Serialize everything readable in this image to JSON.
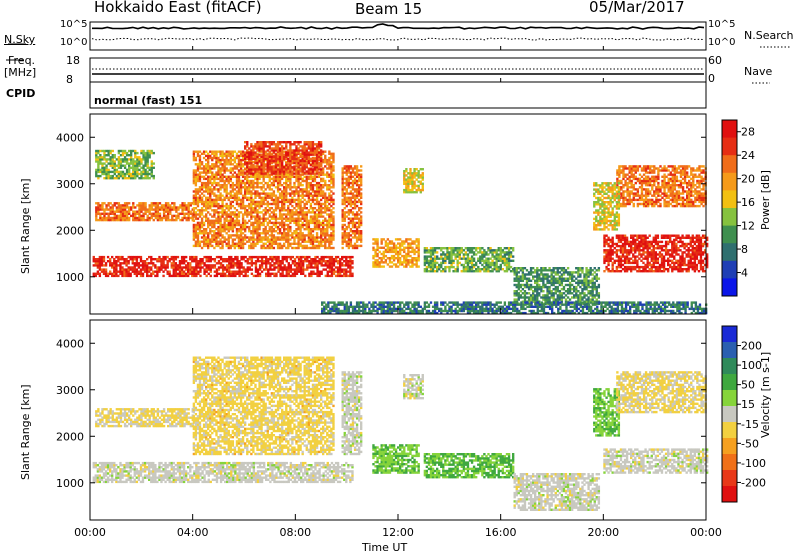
{
  "header": {
    "title": "Hokkaido East (fitACF)",
    "beam": "Beam 15",
    "date": "05/Mar/2017"
  },
  "top_panels": {
    "nsky_label": "N.Sky",
    "nsearch_label": "N.Search",
    "noise_ticks": [
      "10^5",
      "10^0"
    ],
    "freq_label_1": "Freq.",
    "freq_label_2": "[MHz]",
    "freq_ticks": [
      "18",
      "8"
    ],
    "nave_label": "Nave",
    "nave_ticks": [
      "60",
      "0"
    ],
    "cpid_label": "CPID",
    "cpid_value": "normal (fast) 151"
  },
  "chart_data": [
    {
      "type": "heatmap",
      "title": "",
      "ylabel": "Slant Range [km]",
      "xlabel": "Time UT",
      "x_ticks": [
        "00:00",
        "04:00",
        "08:00",
        "12:00",
        "16:00",
        "20:00",
        "00:00"
      ],
      "x_range_hours": [
        0,
        24
      ],
      "y_ticks": [
        1000,
        2000,
        3000,
        4000
      ],
      "ylim": [
        200,
        4500
      ],
      "colorbar_label": "Power [dB]",
      "colorbar_ticks": [
        4,
        8,
        12,
        16,
        20,
        24,
        28
      ],
      "colorbar_range": [
        0,
        30
      ],
      "colors": [
        "#0b16e8",
        "#1f3fb5",
        "#2f6f6f",
        "#3f8f4f",
        "#86c23f",
        "#f2c012",
        "#f59a1a",
        "#f06d1a",
        "#e62e14",
        "#e01010"
      ],
      "regions": [
        {
          "t0": 0.1,
          "t1": 10.2,
          "r0": 1000,
          "r1": 1450,
          "v": 27
        },
        {
          "t0": 0.2,
          "t1": 4.0,
          "r0": 2200,
          "r1": 2600,
          "v": 22
        },
        {
          "t0": 0.2,
          "t1": 2.5,
          "r0": 3100,
          "r1": 3700,
          "v": 13
        },
        {
          "t0": 4.0,
          "t1": 9.5,
          "r0": 1600,
          "r1": 3700,
          "v": 21
        },
        {
          "t0": 6.0,
          "t1": 9.0,
          "r0": 3200,
          "r1": 3900,
          "v": 25
        },
        {
          "t0": 9.8,
          "t1": 10.6,
          "r0": 1600,
          "r1": 3400,
          "v": 22
        },
        {
          "t0": 11.0,
          "t1": 12.8,
          "r0": 1200,
          "r1": 1800,
          "v": 19
        },
        {
          "t0": 12.2,
          "t1": 13.0,
          "r0": 2800,
          "r1": 3300,
          "v": 16
        },
        {
          "t0": 13.0,
          "t1": 16.5,
          "r0": 1100,
          "r1": 1600,
          "v": 12
        },
        {
          "t0": 16.5,
          "t1": 19.8,
          "r0": 400,
          "r1": 1200,
          "v": 10
        },
        {
          "t0": 20.0,
          "t1": 24.0,
          "r0": 1100,
          "r1": 1900,
          "v": 27
        },
        {
          "t0": 20.5,
          "t1": 24.0,
          "r0": 2500,
          "r1": 3400,
          "v": 22
        },
        {
          "t0": 19.6,
          "t1": 20.6,
          "r0": 2000,
          "r1": 3000,
          "v": 16
        },
        {
          "t0": 9.0,
          "t1": 24.0,
          "r0": 200,
          "r1": 450,
          "v": 8
        }
      ]
    },
    {
      "type": "heatmap",
      "title": "",
      "ylabel": "Slant Range [km]",
      "xlabel": "Time UT",
      "x_ticks": [
        "00:00",
        "04:00",
        "08:00",
        "12:00",
        "16:00",
        "20:00",
        "00:00"
      ],
      "x_range_hours": [
        0,
        24
      ],
      "y_ticks": [
        1000,
        2000,
        3000,
        4000
      ],
      "ylim": [
        200,
        4500
      ],
      "colorbar_label": "Velocity [m s-1]",
      "colorbar_ticks": [
        200,
        100,
        50,
        15,
        -15,
        -50,
        -100,
        -200
      ],
      "colorbar_range": [
        -250,
        250
      ],
      "colors": [
        "#1a2ad6",
        "#2a5fb0",
        "#2f8a5a",
        "#3fa83f",
        "#86d43a",
        "#c8c8c0",
        "#f2d040",
        "#f5a020",
        "#f07018",
        "#e83818",
        "#e01010"
      ],
      "regions": [
        {
          "t0": 0.1,
          "t1": 10.2,
          "r0": 1000,
          "r1": 1450,
          "v": 0
        },
        {
          "t0": 0.2,
          "t1": 4.0,
          "r0": 2200,
          "r1": 2600,
          "v": -30
        },
        {
          "t0": 4.0,
          "t1": 9.5,
          "r0": 1600,
          "r1": 3700,
          "v": -40
        },
        {
          "t0": 9.8,
          "t1": 10.6,
          "r0": 1600,
          "r1": 3400,
          "v": 0
        },
        {
          "t0": 11.0,
          "t1": 12.8,
          "r0": 1200,
          "r1": 1800,
          "v": 60
        },
        {
          "t0": 12.2,
          "t1": 13.0,
          "r0": 2800,
          "r1": 3300,
          "v": 0
        },
        {
          "t0": 13.0,
          "t1": 16.5,
          "r0": 1100,
          "r1": 1600,
          "v": 70
        },
        {
          "t0": 16.5,
          "t1": 19.8,
          "r0": 400,
          "r1": 1200,
          "v": 0
        },
        {
          "t0": 20.0,
          "t1": 24.0,
          "r0": 1200,
          "r1": 1700,
          "v": 0
        },
        {
          "t0": 19.6,
          "t1": 20.6,
          "r0": 2000,
          "r1": 3000,
          "v": 60
        },
        {
          "t0": 20.5,
          "t1": 24.0,
          "r0": 2500,
          "r1": 3400,
          "v": -30
        }
      ]
    }
  ]
}
